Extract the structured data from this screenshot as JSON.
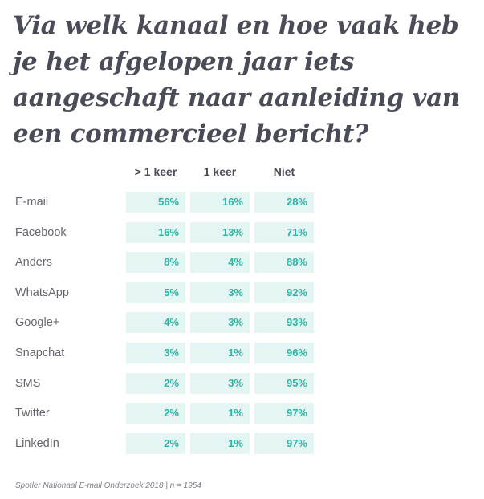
{
  "title": "Via welk kanaal en hoe vaak heb je het afgelopen jaar iets aangeschaft naar aanleiding van een commercieel bericht?",
  "source": "Spotler Nationaal E-mail Onderzoek 2018 | n = 1954",
  "colors": {
    "cell_bg": "#e5f5f3",
    "cell_text": "#2bb5a4",
    "title": "#4a4d57"
  },
  "chart_data": {
    "type": "table",
    "title": "Via welk kanaal en hoe vaak heb je het afgelopen jaar iets aangeschaft naar aanleiding van een commercieel bericht?",
    "columns": [
      "> 1 keer",
      "1 keer",
      "Niet"
    ],
    "rows": [
      {
        "label": "E-mail",
        "values": [
          "56%",
          "16%",
          "28%"
        ]
      },
      {
        "label": "Facebook",
        "values": [
          "16%",
          "13%",
          "71%"
        ]
      },
      {
        "label": "Anders",
        "values": [
          "8%",
          "4%",
          "88%"
        ]
      },
      {
        "label": "WhatsApp",
        "values": [
          "5%",
          "3%",
          "92%"
        ]
      },
      {
        "label": "Google+",
        "values": [
          "4%",
          "3%",
          "93%"
        ]
      },
      {
        "label": "Snapchat",
        "values": [
          "3%",
          "1%",
          "96%"
        ]
      },
      {
        "label": "SMS",
        "values": [
          "2%",
          "3%",
          "95%"
        ]
      },
      {
        "label": "Twitter",
        "values": [
          "2%",
          "1%",
          "97%"
        ]
      },
      {
        "label": "LinkedIn",
        "values": [
          "2%",
          "1%",
          "97%"
        ]
      }
    ]
  }
}
